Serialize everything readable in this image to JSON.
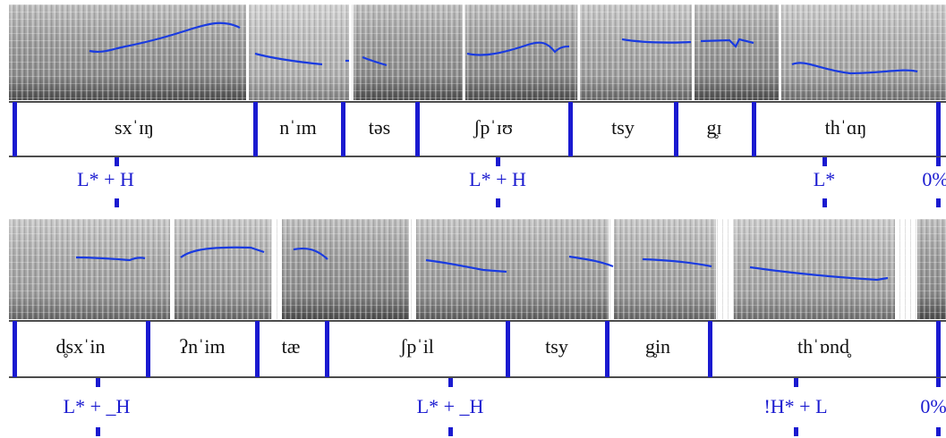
{
  "panels": [
    {
      "segments": [
        "sxˈɪŋ",
        "nˈɪm",
        "təs",
        "ʃpˈɪʊ",
        "tsy",
        "g̥ɪ",
        "thˈɑŋ"
      ],
      "tones": [
        "L* + H",
        "L* + H",
        "L*",
        "0%"
      ]
    },
    {
      "segments": [
        "d̥sxˈin",
        "ʔnˈim",
        "tæ",
        "ʃpˈil",
        "tsy",
        "g̥in",
        "thˈɒnd̥"
      ],
      "tones": [
        "L* + _H",
        "L* + _H",
        "!H* + L",
        "0%"
      ]
    }
  ]
}
